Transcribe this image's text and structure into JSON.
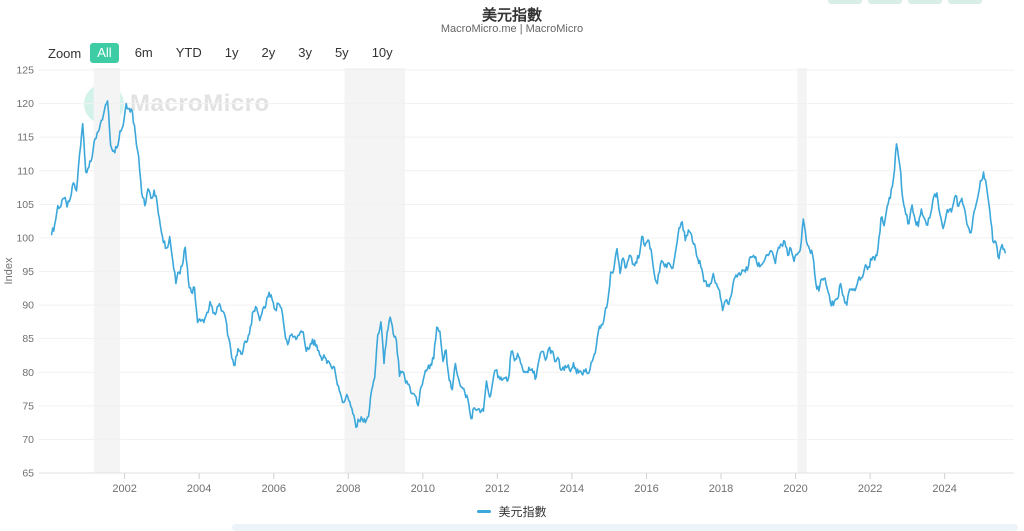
{
  "header": {
    "title": "美元指數",
    "subtitle": "MacroMicro.me | MacroMicro"
  },
  "toolbar": {
    "zoom_label": "Zoom",
    "buttons": [
      "All",
      "6m",
      "YTD",
      "1y",
      "2y",
      "3y",
      "5y",
      "10y"
    ],
    "active_button": "All",
    "active_color": "#3ecca5"
  },
  "watermark": {
    "logo_glyph": "M",
    "text": "MacroMicro"
  },
  "legend": {
    "items": [
      {
        "label": "美元指數",
        "color": "#3ba7da"
      }
    ]
  },
  "chart_data": {
    "type": "line",
    "title": "美元指數",
    "ylabel": "Index",
    "xlabel": "",
    "line_color": "#3ba7da",
    "grid": "horizontal",
    "ylim": [
      65,
      125
    ],
    "y_ticks": [
      65,
      70,
      75,
      80,
      85,
      90,
      95,
      100,
      105,
      110,
      115,
      120,
      125
    ],
    "x_ticks": [
      2002,
      2004,
      2006,
      2008,
      2010,
      2012,
      2014,
      2016,
      2018,
      2020,
      2022,
      2024
    ],
    "x_domain": [
      1999.73,
      2025.86
    ],
    "recession_bands": [
      [
        2001.17,
        2001.88
      ],
      [
        2007.9,
        2009.52
      ],
      [
        2020.05,
        2020.3
      ]
    ],
    "band_color": "#f4f4f4",
    "series": [
      {
        "name": "美元指數",
        "start": "2000-01",
        "frequency": "monthly",
        "values": [
          100.5,
          102.0,
          104.8,
          104.7,
          105.9,
          104.6,
          105.9,
          108.2,
          107.0,
          112.5,
          117.0,
          109.8,
          110.5,
          111.9,
          114.8,
          115.8,
          117.5,
          119.0,
          120.4,
          113.8,
          113.0,
          113.4,
          115.9,
          116.7,
          120.0,
          119.3,
          118.8,
          115.3,
          112.2,
          106.7,
          104.8,
          107.3,
          105.9,
          107.1,
          105.1,
          101.9,
          99.3,
          98.5,
          100.2,
          96.6,
          93.2,
          94.9,
          95.8,
          98.6,
          93.7,
          91.9,
          92.6,
          87.4,
          87.6,
          87.4,
          88.9,
          90.5,
          88.8,
          88.9,
          90.2,
          89.1,
          88.0,
          85.1,
          82.1,
          81.0,
          83.5,
          82.7,
          84.3,
          84.6,
          86.8,
          89.1,
          89.6,
          87.7,
          89.4,
          90.0,
          91.9,
          90.8,
          89.3,
          90.2,
          89.5,
          86.2,
          84.1,
          85.5,
          85.3,
          85.1,
          85.9,
          86.0,
          83.1,
          83.5,
          84.9,
          83.9,
          83.2,
          81.8,
          82.2,
          81.7,
          80.8,
          80.8,
          78.1,
          76.8,
          75.5,
          76.7,
          75.6,
          73.8,
          71.8,
          72.8,
          73.0,
          72.5,
          73.4,
          77.3,
          79.2,
          85.6,
          87.5,
          81.3,
          85.9,
          88.2,
          85.7,
          84.7,
          79.4,
          80.1,
          78.4,
          78.2,
          76.8,
          76.5,
          75.0,
          77.9,
          79.6,
          80.5,
          81.2,
          82.0,
          86.7,
          86.1,
          81.6,
          83.3,
          78.8,
          77.4,
          81.3,
          79.1,
          77.8,
          77.0,
          76.0,
          73.1,
          74.7,
          74.4,
          74.0,
          74.2,
          78.7,
          76.3,
          78.5,
          80.3,
          79.4,
          78.8,
          79.1,
          78.9,
          83.1,
          81.7,
          82.8,
          81.3,
          80.0,
          80.1,
          80.3,
          79.9,
          79.3,
          82.0,
          83.1,
          81.8,
          83.5,
          83.2,
          81.6,
          82.2,
          80.3,
          80.3,
          80.8,
          80.1,
          81.4,
          79.8,
          80.2,
          79.6,
          80.5,
          79.9,
          81.6,
          82.8,
          86.0,
          87.1,
          88.4,
          90.4,
          94.9,
          95.4,
          98.4,
          94.7,
          97.0,
          95.6,
          97.4,
          96.1,
          96.4,
          97.0,
          100.2,
          98.8,
          99.7,
          98.3,
          94.7,
          93.2,
          96.0,
          96.2,
          95.6,
          96.1,
          95.5,
          98.4,
          101.5,
          102.4,
          99.6,
          101.2,
          100.5,
          99.1,
          97.0,
          95.7,
          93.5,
          92.8,
          93.2,
          94.7,
          93.2,
          92.2,
          89.2,
          90.7,
          90.1,
          91.9,
          94.1,
          94.6,
          94.7,
          95.2,
          95.2,
          97.2,
          97.4,
          96.3,
          95.7,
          96.3,
          97.4,
          97.6,
          97.9,
          96.2,
          98.6,
          99.0,
          99.5,
          97.4,
          98.4,
          96.5,
          97.5,
          98.2,
          102.8,
          99.5,
          98.3,
          97.4,
          93.3,
          92.1,
          93.9,
          94.0,
          91.9,
          89.9,
          90.6,
          90.9,
          93.2,
          91.3,
          90.0,
          92.4,
          92.2,
          92.6,
          94.2,
          94.1,
          96.0,
          95.7,
          96.7,
          96.7,
          98.3,
          103.0,
          101.8,
          104.7,
          105.9,
          108.8,
          114.0,
          111.0,
          105.9,
          103.5,
          102.1,
          104.9,
          102.6,
          101.7,
          104.3,
          102.9,
          101.9,
          103.6,
          106.2,
          106.7,
          103.5,
          101.4,
          103.4,
          104.2,
          104.5,
          106.3,
          104.7,
          105.9,
          104.1,
          101.7,
          100.8,
          104.0,
          105.7,
          108.5,
          109.8,
          107.6,
          104.2,
          99.5,
          99.4,
          96.9,
          99.0,
          97.8
        ]
      }
    ]
  }
}
